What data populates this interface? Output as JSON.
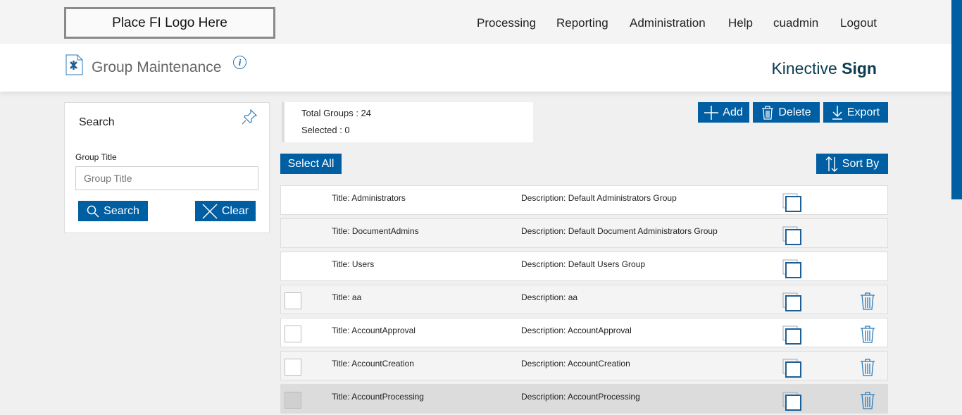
{
  "logo": "Place FI Logo Here",
  "nav": [
    "Processing",
    "Reporting",
    "Administration",
    "Help",
    "cuadmin",
    "Logout"
  ],
  "page": {
    "title": "Group Maintenance",
    "info": "i",
    "brand_light": "Kinective",
    "brand_bold": "Sign"
  },
  "search": {
    "title": "Search",
    "label": "Group Title",
    "placeholder": "Group Title",
    "search_btn": "Search",
    "clear_btn": "Clear"
  },
  "summary": {
    "total": "Total Groups : 24",
    "selected": "Selected : 0"
  },
  "toolbar": {
    "add": "Add",
    "delete": "Delete",
    "export": "Export",
    "select_all": "Select All",
    "sort_by": "Sort By"
  },
  "rows": [
    {
      "title": "Title:  Administrators",
      "desc": "Description: Default Administrators Group",
      "checkbox": false,
      "deletable": false
    },
    {
      "title": "Title:  DocumentAdmins",
      "desc": "Description: Default Document Administrators Group",
      "checkbox": false,
      "deletable": false
    },
    {
      "title": "Title:  Users",
      "desc": "Description: Default Users Group",
      "checkbox": false,
      "deletable": false
    },
    {
      "title": "Title:  aa",
      "desc": "Description: aa",
      "checkbox": true,
      "deletable": true
    },
    {
      "title": "Title:  AccountApproval",
      "desc": "Description: AccountApproval",
      "checkbox": true,
      "deletable": true
    },
    {
      "title": "Title:  AccountCreation",
      "desc": "Description: AccountCreation",
      "checkbox": true,
      "deletable": true
    },
    {
      "title": "Title:  AccountProcessing",
      "desc": "Description: AccountProcessing",
      "checkbox": true,
      "deletable": true
    }
  ],
  "colors": {
    "accent": "#005ea2",
    "brand": "#0b3c4f"
  }
}
